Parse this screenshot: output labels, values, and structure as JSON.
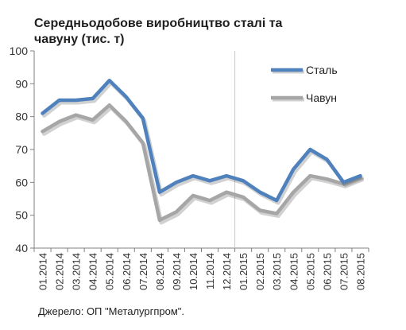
{
  "title_line1": "Середньодобове виробництво сталі та",
  "title_line2": "чавуну (тис. т)",
  "source": "Джерело: ОП \"Металургпром\".",
  "chart_data": {
    "type": "line",
    "title": "Середньодобове виробництво сталі та чавуну (тис. т)",
    "xlabel": "",
    "ylabel": "",
    "ylim": [
      40,
      100
    ],
    "yticks": [
      40,
      50,
      60,
      70,
      80,
      90,
      100
    ],
    "grid": false,
    "legend_position": "top-right",
    "categories": [
      "01.2014",
      "02.2014",
      "03.2014",
      "04.2014",
      "05.2014",
      "06.2014",
      "07.2014",
      "08.2014",
      "09.2014",
      "10.2014",
      "11.2014",
      "12.2014",
      "01.2015",
      "02.2015",
      "03.2015",
      "04.2015",
      "05.2015",
      "06.2015",
      "07.2015",
      "08.2015"
    ],
    "series": [
      {
        "name": "Сталь",
        "color": "#4f81bd",
        "values": [
          81,
          85,
          85,
          85.5,
          91,
          86,
          79.5,
          57,
          60,
          62,
          60.5,
          62,
          60.5,
          57,
          54.5,
          64,
          70,
          67,
          60,
          62
        ]
      },
      {
        "name": "Чавун",
        "color": "#a6a6a6",
        "values": [
          75.5,
          78.5,
          80.5,
          79,
          83.5,
          78.5,
          72,
          48.5,
          51,
          56,
          54.5,
          57,
          55.5,
          51.5,
          50.5,
          57,
          62,
          61,
          59.5,
          61.5
        ]
      }
    ]
  }
}
